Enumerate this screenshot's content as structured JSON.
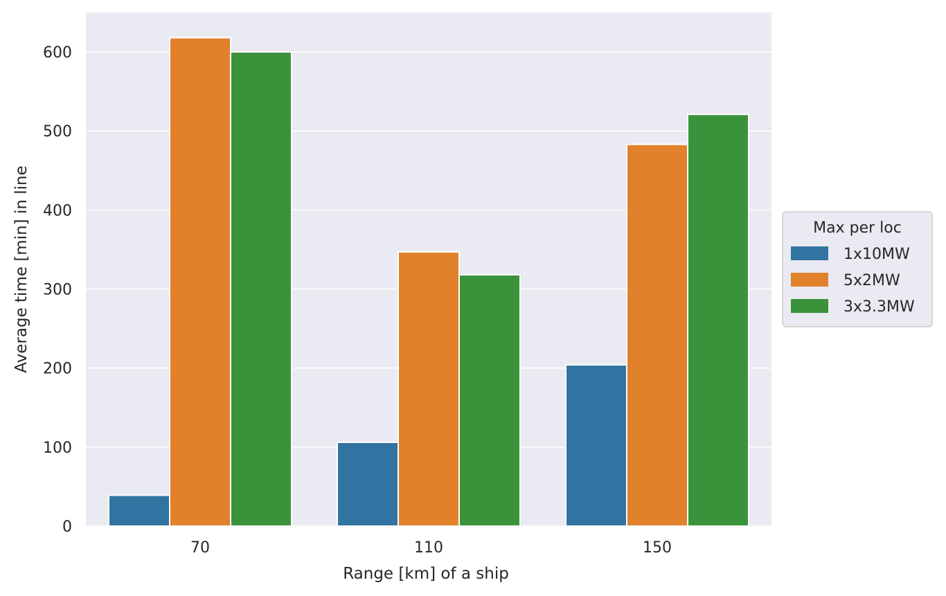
{
  "chart_data": {
    "type": "bar",
    "categories": [
      "70",
      "110",
      "150"
    ],
    "series": [
      {
        "name": "1x10MW",
        "color": "#3274a1",
        "values": [
          39,
          106,
          204
        ]
      },
      {
        "name": "5x2MW",
        "color": "#e1812c",
        "values": [
          618,
          347,
          483
        ]
      },
      {
        "name": "3x3.3MW",
        "color": "#3a923a",
        "values": [
          600,
          318,
          521
        ]
      }
    ],
    "title": "",
    "xlabel": "Range [km] of a ship",
    "ylabel": "Average time [min] in line",
    "ylim": [
      0,
      650
    ],
    "yticks": [
      0,
      100,
      200,
      300,
      400,
      500,
      600
    ],
    "grid": true,
    "background": "#eaeaf2",
    "legend": {
      "title": "Max per loc",
      "placement": "center-right-outside"
    }
  }
}
